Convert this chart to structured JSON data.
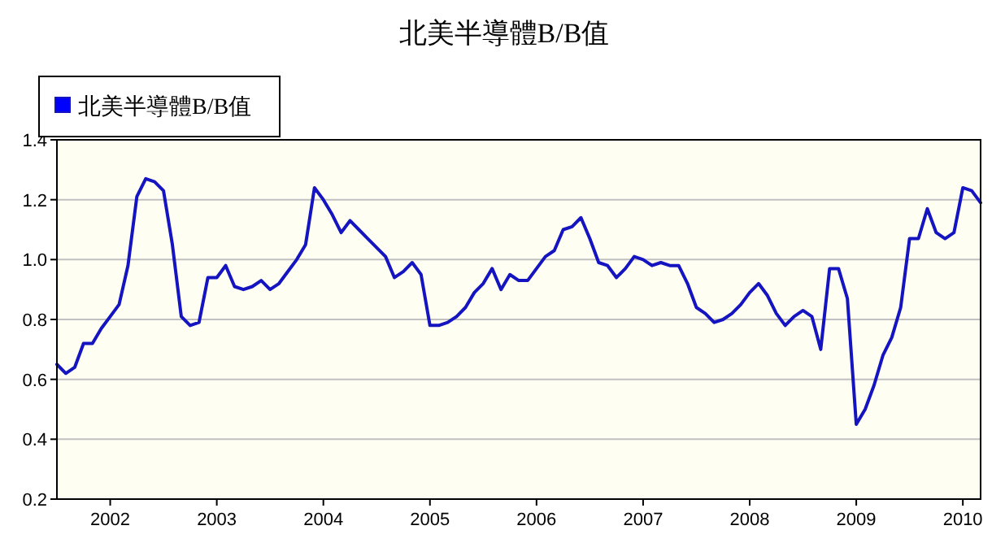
{
  "chart_data": {
    "type": "line",
    "title": "北美半導體B/B值",
    "x": [
      "2001-07",
      "2001-08",
      "2001-09",
      "2001-10",
      "2001-11",
      "2001-12",
      "2002-01",
      "2002-02",
      "2002-03",
      "2002-04",
      "2002-05",
      "2002-06",
      "2002-07",
      "2002-08",
      "2002-09",
      "2002-10",
      "2002-11",
      "2002-12",
      "2003-01",
      "2003-02",
      "2003-03",
      "2003-04",
      "2003-05",
      "2003-06",
      "2003-07",
      "2003-08",
      "2003-09",
      "2003-10",
      "2003-11",
      "2003-12",
      "2004-01",
      "2004-02",
      "2004-03",
      "2004-04",
      "2004-05",
      "2004-06",
      "2004-07",
      "2004-08",
      "2004-09",
      "2004-10",
      "2004-11",
      "2004-12",
      "2005-01",
      "2005-02",
      "2005-03",
      "2005-04",
      "2005-05",
      "2005-06",
      "2005-07",
      "2005-08",
      "2005-09",
      "2005-10",
      "2005-11",
      "2005-12",
      "2006-01",
      "2006-02",
      "2006-03",
      "2006-04",
      "2006-05",
      "2006-06",
      "2006-07",
      "2006-08",
      "2006-09",
      "2006-10",
      "2006-11",
      "2006-12",
      "2007-01",
      "2007-02",
      "2007-03",
      "2007-04",
      "2007-05",
      "2007-06",
      "2007-07",
      "2007-08",
      "2007-09",
      "2007-10",
      "2007-11",
      "2007-12",
      "2008-01",
      "2008-02",
      "2008-03",
      "2008-04",
      "2008-05",
      "2008-06",
      "2008-07",
      "2008-08",
      "2008-09",
      "2008-10",
      "2008-11",
      "2008-12",
      "2009-01",
      "2009-02",
      "2009-03",
      "2009-04",
      "2009-05",
      "2009-06",
      "2009-07",
      "2009-08",
      "2009-09",
      "2009-10",
      "2009-11",
      "2009-12",
      "2010-01",
      "2010-02",
      "2010-03"
    ],
    "series": [
      {
        "name": "北美半導體B/B值",
        "color": "#1414c0",
        "values": [
          0.65,
          0.62,
          0.64,
          0.72,
          0.72,
          0.77,
          0.81,
          0.85,
          0.98,
          1.21,
          1.27,
          1.26,
          1.23,
          1.05,
          0.81,
          0.78,
          0.79,
          0.94,
          0.94,
          0.98,
          0.91,
          0.9,
          0.91,
          0.93,
          0.9,
          0.92,
          0.96,
          1.0,
          1.05,
          1.24,
          1.2,
          1.15,
          1.09,
          1.13,
          1.1,
          1.07,
          1.04,
          1.01,
          0.94,
          0.96,
          0.99,
          0.95,
          0.78,
          0.78,
          0.79,
          0.81,
          0.84,
          0.89,
          0.92,
          0.97,
          0.9,
          0.95,
          0.93,
          0.93,
          0.97,
          1.01,
          1.03,
          1.1,
          1.11,
          1.14,
          1.07,
          0.99,
          0.98,
          0.94,
          0.97,
          1.01,
          1.0,
          0.98,
          0.99,
          0.98,
          0.98,
          0.92,
          0.84,
          0.82,
          0.79,
          0.8,
          0.82,
          0.85,
          0.89,
          0.92,
          0.88,
          0.82,
          0.78,
          0.81,
          0.83,
          0.81,
          0.7,
          0.97,
          0.97,
          0.87,
          0.45,
          0.5,
          0.58,
          0.68,
          0.74,
          0.84,
          1.07,
          1.07,
          1.17,
          1.09,
          1.07,
          1.09,
          1.24,
          1.23,
          1.19
        ]
      }
    ],
    "xlim": [
      "2001-07",
      "2010-03"
    ],
    "xticks": [
      "2002",
      "2003",
      "2004",
      "2005",
      "2006",
      "2007",
      "2008",
      "2009",
      "2010"
    ],
    "ylim": [
      0.2,
      1.4
    ],
    "yticks": [
      0.2,
      0.4,
      0.6,
      0.8,
      {
        "value": 1,
        "label": "1.0"
      },
      1.2,
      1.4
    ],
    "grid": "y",
    "legend": "top left"
  }
}
